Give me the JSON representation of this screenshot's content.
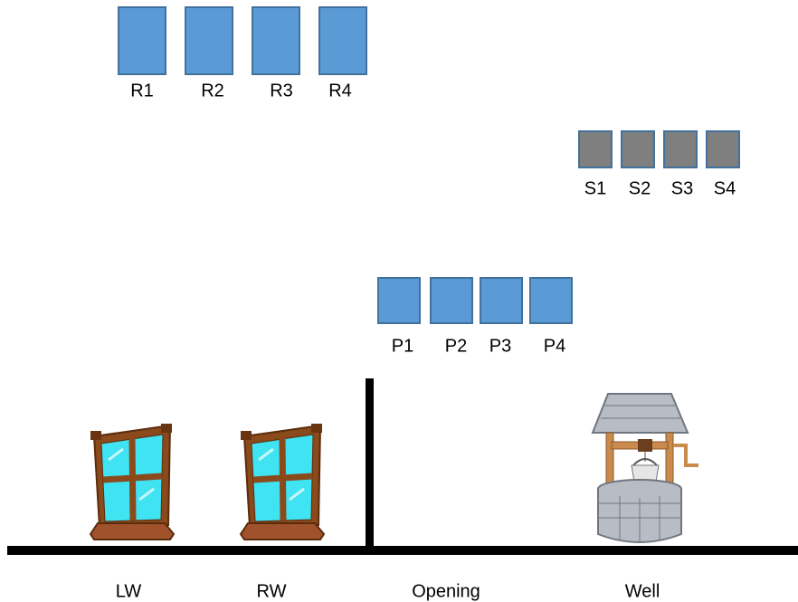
{
  "r_boxes": [
    "R1",
    "R2",
    "R3",
    "R4"
  ],
  "s_boxes": [
    "S1",
    "S2",
    "S3",
    "S4"
  ],
  "p_boxes": [
    "P1",
    "P2",
    "P3",
    "P4"
  ],
  "objects": [
    "LW",
    "RW",
    "Opening",
    "Well"
  ]
}
